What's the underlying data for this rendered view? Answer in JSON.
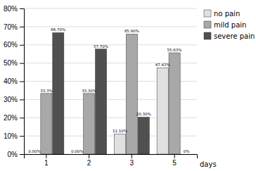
{
  "chart_data": {
    "type": "bar",
    "categories": [
      "1",
      "2",
      "3",
      "5"
    ],
    "x_label": "days",
    "series": [
      {
        "name": "no pain",
        "color": "#e0e0e0",
        "values": [
          0.0,
          0.0,
          11.1,
          47.43
        ],
        "value_labels": [
          "0.00%",
          "0.00%",
          "11.10%",
          "47.43%"
        ]
      },
      {
        "name": "mild pain",
        "color": "#a8a8a8",
        "values": [
          33.3,
          33.3,
          65.9,
          55.63
        ],
        "value_labels": [
          "33.3%",
          "33.30%",
          "65.90%",
          "55.63%"
        ]
      },
      {
        "name": "severe pain",
        "color": "#505050",
        "values": [
          66.7,
          57.7,
          20.3,
          0.0
        ],
        "value_labels": [
          "66.70%",
          "57.70%",
          "20.30%",
          "0%"
        ]
      }
    ],
    "ylim": [
      0,
      80
    ],
    "yticks": [
      {
        "value": 0,
        "label": "0%"
      },
      {
        "value": 10,
        "label": "10%"
      },
      {
        "value": 20,
        "label": "20%"
      },
      {
        "value": 30,
        "label": "30%"
      },
      {
        "value": 40,
        "label": "40%"
      },
      {
        "value": 50,
        "label": "50%"
      },
      {
        "value": 60,
        "label": "60%"
      },
      {
        "value": 70,
        "label": "70%"
      },
      {
        "value": 80,
        "label": "80%"
      }
    ],
    "grid": true,
    "legend": "right",
    "data_labels": true
  }
}
